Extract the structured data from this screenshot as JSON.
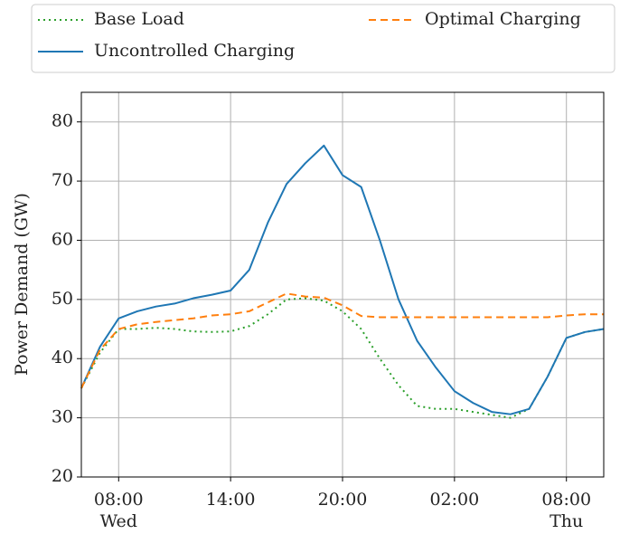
{
  "chart_data": {
    "type": "line",
    "y_label": "Power Demand (GW)",
    "x": [
      6,
      7,
      8,
      9,
      10,
      11,
      12,
      13,
      14,
      15,
      16,
      17,
      18,
      19,
      20,
      21,
      22,
      23,
      24,
      25,
      26,
      27,
      28,
      29,
      30,
      31,
      32,
      33,
      34
    ],
    "series": [
      {
        "name": "Base Load",
        "color": "#2ca02c",
        "style": "dotted",
        "values": [
          35,
          41,
          45,
          45,
          45.2,
          45,
          44.6,
          44.5,
          44.6,
          45.5,
          47.5,
          50,
          50.2,
          49.8,
          48,
          45,
          40,
          35.5,
          32,
          31.5,
          31.5,
          31,
          30.5,
          30,
          31.5,
          37,
          43.5,
          44.5,
          45
        ]
      },
      {
        "name": "Uncontrolled Charging",
        "color": "#1f77b4",
        "style": "solid",
        "values": [
          35,
          42,
          46.8,
          48,
          48.8,
          49.3,
          50.2,
          50.8,
          51.5,
          55,
          63,
          69.5,
          73,
          76,
          71,
          69,
          60,
          50,
          43,
          38.5,
          34.5,
          32.5,
          31,
          30.6,
          31.5,
          37,
          43.5,
          44.5,
          45
        ]
      },
      {
        "name": "Optimal Charging",
        "color": "#ff7f0e",
        "style": "dashed",
        "values": [
          35,
          41.5,
          45,
          45.8,
          46.2,
          46.5,
          46.8,
          47.3,
          47.5,
          48,
          49.5,
          51,
          50.5,
          50.3,
          49,
          47.2,
          47,
          47,
          47,
          47,
          47,
          47,
          47,
          47,
          47,
          47,
          47.3,
          47.5,
          47.5
        ]
      }
    ],
    "xlim": [
      6,
      34
    ],
    "xticks": [
      {
        "value": 8,
        "label": "08:00\nWed"
      },
      {
        "value": 14,
        "label": "14:00"
      },
      {
        "value": 20,
        "label": "20:00"
      },
      {
        "value": 26,
        "label": "02:00"
      },
      {
        "value": 32,
        "label": "08:00\nThu"
      }
    ],
    "ylim": [
      20,
      85
    ],
    "yticks": [
      20,
      30,
      40,
      50,
      60,
      70,
      80
    ],
    "grid": true,
    "legend": "top",
    "legend_columns": 2
  }
}
